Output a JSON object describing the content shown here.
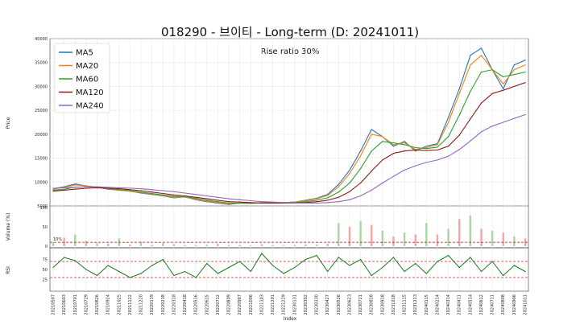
{
  "chart_data": {
    "type": "line",
    "title": "018290 - 브이티 - Long-term (D: 20241011)",
    "annotation": "Rise ratio 30%",
    "xlabel": "Index",
    "dates": [
      "20210507",
      "20210603",
      "20210701",
      "20210729",
      "20210826",
      "20210924",
      "20211025",
      "20211122",
      "20211220",
      "20220119",
      "20220218",
      "20220318",
      "20220418",
      "20220516",
      "20220615",
      "20220712",
      "20220809",
      "20220907",
      "20221006",
      "20221103",
      "20221201",
      "20221229",
      "20230131",
      "20230302",
      "20230330",
      "20230427",
      "20230526",
      "20230623",
      "20230721",
      "20230818",
      "20230918",
      "20231018",
      "20231115",
      "20231213",
      "20240115",
      "20240214",
      "20240314",
      "20240411",
      "20240514",
      "20240612",
      "20240711",
      "20240808",
      "20240906",
      "20241011"
    ],
    "price_panel": {
      "ylabel": "Price",
      "ylim": [
        5000,
        40000
      ],
      "yticks": [
        5000,
        10000,
        15000,
        20000,
        25000,
        30000,
        35000,
        40000
      ],
      "series": [
        {
          "name": "MA5",
          "color": "#1f77b4",
          "values": [
            8600,
            9000,
            9600,
            9200,
            8900,
            8500,
            8300,
            8100,
            7700,
            7400,
            7100,
            6700,
            6900,
            6300,
            5900,
            5600,
            5300,
            5600,
            5500,
            5700,
            5700,
            5700,
            5800,
            6200,
            6600,
            7400,
            9500,
            12500,
            16500,
            21000,
            19500,
            17500,
            18500,
            16500,
            17500,
            18000,
            23500,
            29500,
            36500,
            38000,
            33500,
            29500,
            34500,
            35500
          ]
        },
        {
          "name": "MA20",
          "color": "#ff7f0e",
          "values": [
            8500,
            8900,
            9400,
            9200,
            8900,
            8600,
            8300,
            8100,
            7800,
            7500,
            7200,
            6800,
            6900,
            6400,
            6000,
            5700,
            5400,
            5600,
            5500,
            5700,
            5700,
            5700,
            5800,
            6100,
            6500,
            7200,
            9000,
            11800,
            15500,
            20000,
            19500,
            17800,
            18200,
            16800,
            17200,
            17800,
            22500,
            28500,
            34500,
            36500,
            33500,
            30500,
            33500,
            34500
          ]
        },
        {
          "name": "MA60",
          "color": "#2ca02c",
          "values": [
            8300,
            8500,
            8900,
            9000,
            8900,
            8700,
            8400,
            8200,
            7900,
            7600,
            7300,
            7000,
            6900,
            6600,
            6200,
            5900,
            5600,
            5600,
            5600,
            5600,
            5700,
            5700,
            5700,
            5900,
            6200,
            6700,
            7900,
            9800,
            12800,
            16500,
            18500,
            18200,
            17800,
            17200,
            17000,
            17300,
            19500,
            24000,
            29000,
            33000,
            33500,
            32000,
            32500,
            33000
          ]
        },
        {
          "name": "MA120",
          "color": "#8b1a1a",
          "values": [
            8100,
            8300,
            8500,
            8700,
            8800,
            8700,
            8600,
            8400,
            8200,
            7900,
            7600,
            7300,
            7100,
            6800,
            6500,
            6200,
            5900,
            5800,
            5700,
            5600,
            5600,
            5600,
            5600,
            5700,
            5900,
            6200,
            6800,
            8000,
            9800,
            12300,
            14600,
            16000,
            16500,
            16700,
            16600,
            16700,
            17500,
            19800,
            23200,
            26500,
            28500,
            29200,
            30000,
            30800
          ]
        },
        {
          "name": "MA240",
          "color": "#9467bd",
          "values": [
            8700,
            8800,
            8900,
            9000,
            9000,
            8900,
            8800,
            8700,
            8600,
            8400,
            8200,
            8000,
            7700,
            7400,
            7100,
            6800,
            6500,
            6300,
            6100,
            5900,
            5800,
            5700,
            5600,
            5600,
            5600,
            5700,
            5900,
            6300,
            7100,
            8300,
            9800,
            11200,
            12500,
            13400,
            14100,
            14600,
            15400,
            16800,
            18600,
            20500,
            21700,
            22500,
            23300,
            24100
          ]
        }
      ]
    },
    "volume_panel": {
      "ylabel": "Volume (%)",
      "yticks": [
        0,
        50,
        100
      ],
      "threshold": 10,
      "threshold_label": "10%",
      "values": [
        10,
        22,
        30,
        14,
        8,
        6,
        20,
        4,
        12,
        3,
        8,
        5,
        3,
        2,
        4,
        6,
        3,
        3,
        2,
        5,
        3,
        2,
        3,
        4,
        4,
        6,
        60,
        50,
        65,
        55,
        40,
        25,
        35,
        30,
        60,
        30,
        45,
        70,
        80,
        45,
        40,
        35,
        25,
        20
      ]
    },
    "rsi_panel": {
      "ylabel": "RSI",
      "yticks": [
        25,
        50,
        75
      ],
      "hlines": [
        70,
        30
      ],
      "values": [
        55,
        80,
        72,
        50,
        35,
        60,
        45,
        30,
        40,
        60,
        75,
        35,
        45,
        30,
        65,
        40,
        55,
        70,
        45,
        90,
        60,
        40,
        55,
        75,
        85,
        45,
        80,
        60,
        75,
        35,
        55,
        80,
        45,
        65,
        40,
        70,
        85,
        55,
        80,
        45,
        70,
        35,
        60,
        45
      ]
    },
    "legend_placement": "top-left",
    "grid": true
  }
}
